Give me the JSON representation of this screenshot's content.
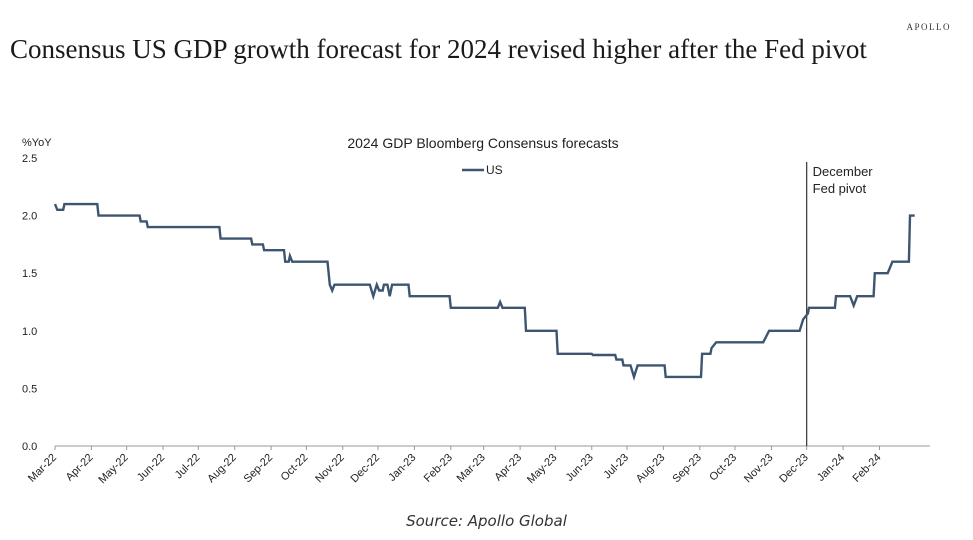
{
  "brand": "APOLLO",
  "headline": "Consensus US GDP growth forecast for 2024 revised higher after the Fed pivot",
  "source": "Source: Apollo Global",
  "colors": {
    "line": "#3d5570",
    "axis": "#999999",
    "vline": "#333333"
  },
  "chart_data": {
    "type": "line",
    "title": "2024 GDP Bloomberg Consensus forecasts",
    "ylabel": "%YoY",
    "xlabel": "",
    "ylim": [
      0,
      2.5
    ],
    "yticks": [
      "0.0",
      "0.5",
      "1.0",
      "1.5",
      "2.0",
      "2.5"
    ],
    "xticks": [
      "Mar-22",
      "Apr-22",
      "May-22",
      "Jun-22",
      "Jul-22",
      "Aug-22",
      "Sep-22",
      "Oct-22",
      "Nov-22",
      "Dec-22",
      "Jan-23",
      "Feb-23",
      "Mar-23",
      "Apr-23",
      "May-23",
      "Jun-23",
      "Jul-23",
      "Aug-23",
      "Sep-23",
      "Oct-23",
      "Nov-23",
      "Dec-23",
      "Jan-24",
      "Feb-24"
    ],
    "x_range": [
      "2022-03-01",
      "2024-03-15"
    ],
    "grid": false,
    "legend": "top-center",
    "annotation": {
      "text": [
        "December",
        "Fed pivot"
      ],
      "date": "2023-12-01"
    },
    "series": [
      {
        "name": "US",
        "points": [
          [
            "2022-03-01",
            2.1
          ],
          [
            "2022-03-03",
            2.05
          ],
          [
            "2022-03-08",
            2.05
          ],
          [
            "2022-03-09",
            2.1
          ],
          [
            "2022-04-06",
            2.1
          ],
          [
            "2022-04-07",
            2.0
          ],
          [
            "2022-05-12",
            2.0
          ],
          [
            "2022-05-13",
            1.95
          ],
          [
            "2022-05-18",
            1.95
          ],
          [
            "2022-05-19",
            1.9
          ],
          [
            "2022-07-19",
            1.9
          ],
          [
            "2022-07-20",
            1.8
          ],
          [
            "2022-08-15",
            1.8
          ],
          [
            "2022-08-16",
            1.75
          ],
          [
            "2022-08-25",
            1.75
          ],
          [
            "2022-08-26",
            1.7
          ],
          [
            "2022-09-12",
            1.7
          ],
          [
            "2022-09-13",
            1.6
          ],
          [
            "2022-09-16",
            1.6
          ],
          [
            "2022-09-17",
            1.65
          ],
          [
            "2022-09-19",
            1.6
          ],
          [
            "2022-10-19",
            1.6
          ],
          [
            "2022-10-21",
            1.4
          ],
          [
            "2022-10-23",
            1.35
          ],
          [
            "2022-10-25",
            1.4
          ],
          [
            "2022-11-24",
            1.4
          ],
          [
            "2022-11-27",
            1.3
          ],
          [
            "2022-11-30",
            1.4
          ],
          [
            "2022-12-02",
            1.35
          ],
          [
            "2022-12-05",
            1.35
          ],
          [
            "2022-12-06",
            1.4
          ],
          [
            "2022-12-09",
            1.4
          ],
          [
            "2022-12-11",
            1.3
          ],
          [
            "2022-12-13",
            1.4
          ],
          [
            "2022-12-27",
            1.4
          ],
          [
            "2022-12-28",
            1.3
          ],
          [
            "2023-01-31",
            1.3
          ],
          [
            "2023-02-01",
            1.2
          ],
          [
            "2023-03-13",
            1.2
          ],
          [
            "2023-03-15",
            1.25
          ],
          [
            "2023-03-17",
            1.2
          ],
          [
            "2023-04-05",
            1.2
          ],
          [
            "2023-04-06",
            1.0
          ],
          [
            "2023-05-02",
            1.0
          ],
          [
            "2023-05-03",
            0.8
          ],
          [
            "2023-06-01",
            0.8
          ],
          [
            "2023-06-02",
            0.79
          ],
          [
            "2023-06-21",
            0.79
          ],
          [
            "2023-06-22",
            0.75
          ],
          [
            "2023-06-27",
            0.75
          ],
          [
            "2023-06-28",
            0.7
          ],
          [
            "2023-07-04",
            0.7
          ],
          [
            "2023-07-07",
            0.6
          ],
          [
            "2023-07-10",
            0.7
          ],
          [
            "2023-08-02",
            0.7
          ],
          [
            "2023-08-03",
            0.6
          ],
          [
            "2023-09-02",
            0.6
          ],
          [
            "2023-09-03",
            0.8
          ],
          [
            "2023-09-10",
            0.8
          ],
          [
            "2023-09-11",
            0.85
          ],
          [
            "2023-09-15",
            0.9
          ],
          [
            "2023-10-25",
            0.9
          ],
          [
            "2023-10-30",
            1.0
          ],
          [
            "2023-11-25",
            1.0
          ],
          [
            "2023-11-28",
            1.1
          ],
          [
            "2023-12-02",
            1.15
          ],
          [
            "2023-12-03",
            1.2
          ],
          [
            "2023-12-25",
            1.2
          ],
          [
            "2023-12-26",
            1.3
          ],
          [
            "2024-01-07",
            1.3
          ],
          [
            "2024-01-10",
            1.22
          ],
          [
            "2024-01-13",
            1.3
          ],
          [
            "2024-01-27",
            1.3
          ],
          [
            "2024-01-28",
            1.5
          ],
          [
            "2024-02-08",
            1.5
          ],
          [
            "2024-02-12",
            1.6
          ],
          [
            "2024-02-26",
            1.6
          ],
          [
            "2024-02-27",
            2.0
          ],
          [
            "2024-03-02",
            2.0
          ]
        ]
      }
    ]
  }
}
